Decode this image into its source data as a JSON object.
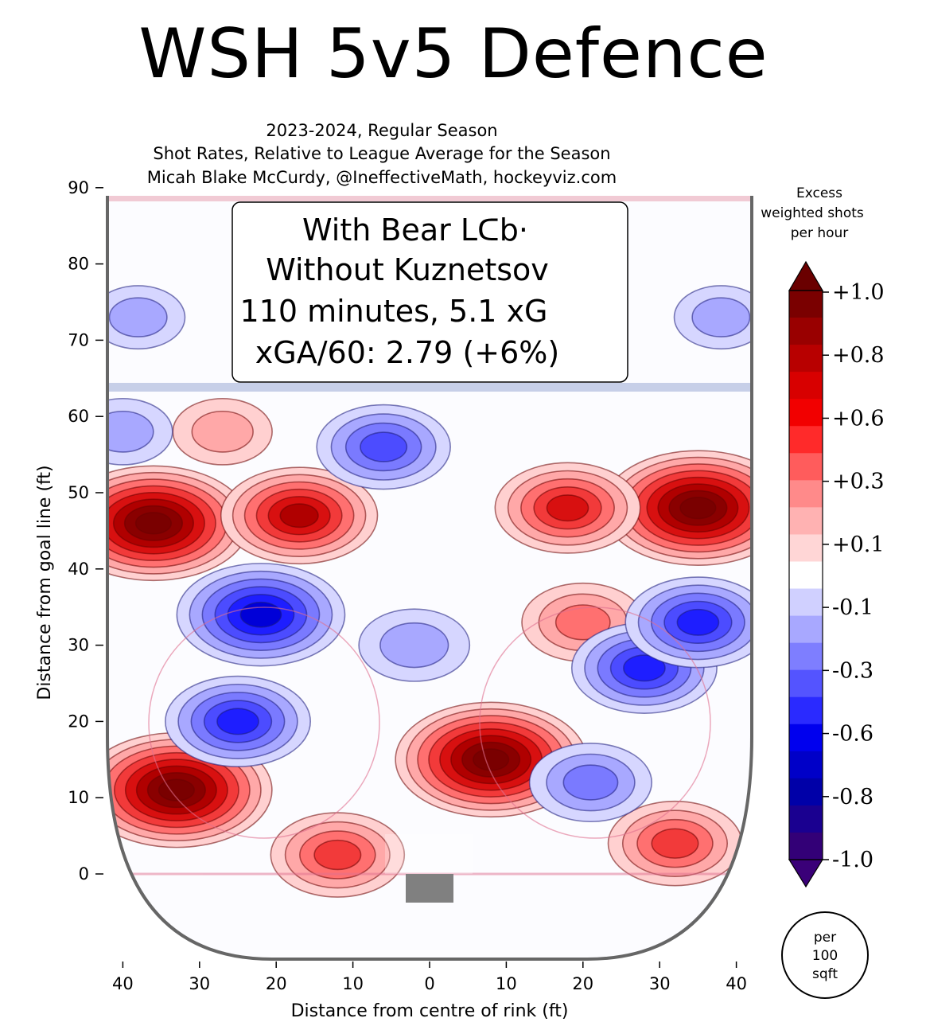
{
  "header": {
    "title": "WSH 5v5 Defence",
    "subtitle_line1": "2023-2024, Regular Season",
    "subtitle_line2": "Shot Rates, Relative to League Average for the Season",
    "subtitle_line3": "Micah Blake McCurdy, @IneffectiveMath, hockeyviz.com"
  },
  "info_box": {
    "line1": "With Bear Lᑕb·",
    "line2": "Without Kuznetsov",
    "line3": "110 minutes, 5.1 xG",
    "line4": "xGA/60: 2.79 (+6%)"
  },
  "colorbar": {
    "title_line1": "Excess",
    "title_line2": "weighted shots",
    "title_line3": "per hour",
    "tick_labels": [
      "+1.0",
      "+0.8",
      "+0.6",
      "+0.3",
      "+0.1",
      "-0.1",
      "-0.3",
      "-0.6",
      "-0.8",
      "-1.0"
    ],
    "colors": [
      "#7a0000",
      "#990000",
      "#b80000",
      "#d80000",
      "#f20000",
      "#ff2a2a",
      "#ff5c5c",
      "#ff8a8a",
      "#ffb2b2",
      "#ffd6d6",
      "#ffffff",
      "#d0d0ff",
      "#a8a8ff",
      "#7e7eff",
      "#5454ff",
      "#2a2aff",
      "#0000ee",
      "#0000c8",
      "#0000a8",
      "#1a0090",
      "#330077"
    ]
  },
  "unit_circle": {
    "line1": "per",
    "line2": "100",
    "line3": "sqft"
  },
  "chart_data": {
    "type": "heatmap",
    "xlabel": "Distance from centre of rink (ft)",
    "ylabel": "Distance from goal line (ft)",
    "xlim": [
      42,
      -42,
      42
    ],
    "ylim": [
      -12,
      90
    ],
    "x_tick_labels": [
      "40",
      "30",
      "20",
      "10",
      "0",
      "10",
      "20",
      "30",
      "40"
    ],
    "x_tick_values": [
      -40,
      -30,
      -20,
      -10,
      0,
      10,
      20,
      30,
      40
    ],
    "y_ticks": [
      0,
      10,
      20,
      30,
      40,
      50,
      60,
      70,
      80,
      90
    ],
    "blobs": [
      {
        "x": -36,
        "y": 46,
        "value": 1.0
      },
      {
        "x": -33,
        "y": 11,
        "value": 1.0
      },
      {
        "x": 8,
        "y": 15,
        "value": 1.0
      },
      {
        "x": 35,
        "y": 48,
        "value": 1.0
      },
      {
        "x": -17,
        "y": 47,
        "value": 0.7
      },
      {
        "x": 18,
        "y": 48,
        "value": 0.6
      },
      {
        "x": -12,
        "y": 2.5,
        "value": 0.5
      },
      {
        "x": 32,
        "y": 4,
        "value": 0.5
      },
      {
        "x": 20,
        "y": 33,
        "value": 0.4
      },
      {
        "x": -27,
        "y": 58,
        "value": 0.2
      },
      {
        "x": -22,
        "y": 34,
        "value": -0.8
      },
      {
        "x": -25,
        "y": 20,
        "value": -0.6
      },
      {
        "x": -6,
        "y": 56,
        "value": -0.5
      },
      {
        "x": 28,
        "y": 27,
        "value": -0.6
      },
      {
        "x": 35,
        "y": 33,
        "value": -0.6
      },
      {
        "x": 21,
        "y": 12,
        "value": -0.4
      },
      {
        "x": -2,
        "y": 30,
        "value": -0.3
      },
      {
        "x": -40,
        "y": 58,
        "value": -0.2
      },
      {
        "x": -38,
        "y": 73,
        "value": -0.15
      },
      {
        "x": 38,
        "y": 73,
        "value": -0.15
      }
    ]
  }
}
